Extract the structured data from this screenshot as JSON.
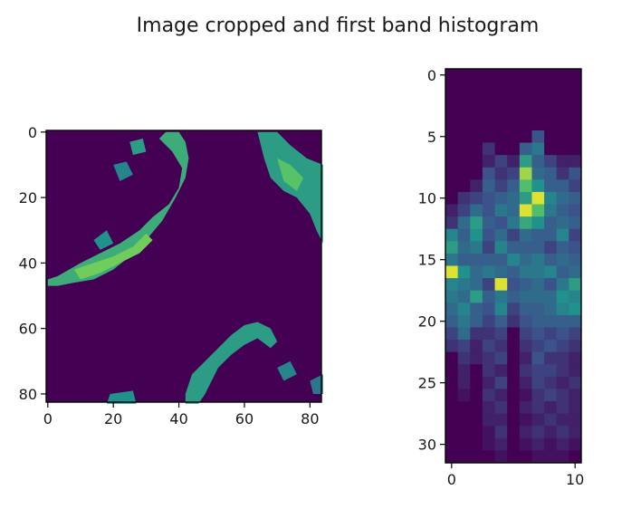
{
  "figure": {
    "title": "Image cropped and first band histogram"
  },
  "colors": {
    "background": "#ffffff",
    "axis": "#000000",
    "viridis_low": "#440154",
    "viridis_mid": "#21918c",
    "viridis_high": "#fde725"
  },
  "chart_data": [
    {
      "type": "heatmap",
      "title": "",
      "colormap": "viridis",
      "grid": false,
      "xlim": [
        -0.5,
        83.5
      ],
      "ylim": [
        82.5,
        -0.5
      ],
      "x_ticks": [
        0,
        20,
        40,
        60,
        80
      ],
      "y_ticks": [
        0,
        20,
        40,
        60,
        80
      ],
      "x_tick_labels": [
        "0",
        "20",
        "40",
        "60",
        "80"
      ],
      "y_tick_labels": [
        "0",
        "20",
        "40",
        "60",
        "80"
      ],
      "value_range": [
        0,
        1
      ],
      "regions": [
        {
          "name": "left-band",
          "value": 0.62,
          "pts": [
            [
              0,
              45
            ],
            [
              3,
              44
            ],
            [
              10,
              40
            ],
            [
              16,
              37
            ],
            [
              22,
              34
            ],
            [
              28,
              30
            ],
            [
              32,
              26
            ],
            [
              37,
              22
            ],
            [
              40,
              17
            ],
            [
              41,
              11
            ],
            [
              38,
              6
            ],
            [
              34,
              2
            ],
            [
              36,
              0
            ],
            [
              40,
              0
            ],
            [
              42,
              3
            ],
            [
              43,
              8
            ],
            [
              42,
              14
            ],
            [
              39,
              20
            ],
            [
              35,
              27
            ],
            [
              30,
              33
            ],
            [
              25,
              38
            ],
            [
              20,
              42
            ],
            [
              14,
              45
            ],
            [
              8,
              46
            ],
            [
              3,
              47
            ],
            [
              0,
              47
            ]
          ]
        },
        {
          "name": "left-band-bright",
          "value": 0.78,
          "pts": [
            [
              8,
              42
            ],
            [
              14,
              40
            ],
            [
              20,
              38
            ],
            [
              26,
              35
            ],
            [
              30,
              31
            ],
            [
              32,
              33
            ],
            [
              28,
              37
            ],
            [
              22,
              40
            ],
            [
              16,
              43
            ],
            [
              10,
              45
            ]
          ]
        },
        {
          "name": "left-speckle-1",
          "value": 0.45,
          "pts": [
            [
              20,
              10
            ],
            [
              24,
              9
            ],
            [
              26,
              13
            ],
            [
              22,
              15
            ]
          ]
        },
        {
          "name": "left-speckle-2",
          "value": 0.55,
          "pts": [
            [
              25,
              3
            ],
            [
              29,
              2
            ],
            [
              30,
              6
            ],
            [
              26,
              7
            ]
          ]
        },
        {
          "name": "left-top-pale",
          "value": 0.5,
          "pts": [
            [
              14,
              33
            ],
            [
              18,
              30
            ],
            [
              20,
              34
            ],
            [
              16,
              36
            ]
          ]
        },
        {
          "name": "top-right",
          "value": 0.55,
          "pts": [
            [
              64,
              0
            ],
            [
              70,
              0
            ],
            [
              74,
              4
            ],
            [
              79,
              8
            ],
            [
              84,
              10
            ],
            [
              84,
              34
            ],
            [
              82,
              30
            ],
            [
              80,
              25
            ],
            [
              76,
              20
            ],
            [
              72,
              18
            ],
            [
              68,
              14
            ],
            [
              66,
              8
            ]
          ]
        },
        {
          "name": "top-right-bright",
          "value": 0.72,
          "pts": [
            [
              70,
              8
            ],
            [
              74,
              10
            ],
            [
              78,
              14
            ],
            [
              76,
              18
            ],
            [
              72,
              15
            ]
          ]
        },
        {
          "name": "bottom-mid",
          "value": 0.55,
          "pts": [
            [
              42,
              80
            ],
            [
              44,
              74
            ],
            [
              48,
              70
            ],
            [
              52,
              66
            ],
            [
              56,
              62
            ],
            [
              60,
              59
            ],
            [
              64,
              58
            ],
            [
              68,
              60
            ],
            [
              70,
              64
            ],
            [
              68,
              66
            ],
            [
              64,
              63
            ],
            [
              60,
              65
            ],
            [
              56,
              68
            ],
            [
              52,
              72
            ],
            [
              50,
              76
            ],
            [
              48,
              80
            ],
            [
              46,
              83
            ],
            [
              42,
              83
            ]
          ]
        },
        {
          "name": "bottom-right-dots",
          "value": 0.45,
          "pts": [
            [
              70,
              72
            ],
            [
              74,
              70
            ],
            [
              76,
              74
            ],
            [
              72,
              76
            ]
          ]
        },
        {
          "name": "bottom-left",
          "value": 0.5,
          "pts": [
            [
              19,
              80
            ],
            [
              26,
              79
            ],
            [
              27,
              83
            ],
            [
              18,
              83
            ]
          ]
        },
        {
          "name": "right-bottom-speck",
          "value": 0.4,
          "pts": [
            [
              80,
              76
            ],
            [
              84,
              74
            ],
            [
              84,
              80
            ],
            [
              81,
              80
            ]
          ]
        }
      ]
    },
    {
      "type": "heatmap",
      "title": "",
      "colormap": "viridis",
      "grid": false,
      "xlim": [
        -0.5,
        10.5
      ],
      "ylim": [
        31.5,
        -0.5
      ],
      "x_ticks": [
        0,
        10
      ],
      "y_ticks": [
        0,
        5,
        10,
        15,
        20,
        25,
        30
      ],
      "x_tick_labels": [
        "0",
        "10"
      ],
      "y_tick_labels": [
        "0",
        "5",
        "10",
        "15",
        "20",
        "25",
        "30"
      ],
      "value_range": [
        0,
        1
      ],
      "cells": [
        [
          0,
          0,
          0,
          0,
          0,
          0,
          0,
          0,
          0,
          0,
          0
        ],
        [
          0,
          0,
          0,
          0,
          0,
          0,
          0,
          0,
          0,
          0,
          0
        ],
        [
          0,
          0,
          0,
          0,
          0,
          0,
          0,
          0,
          0,
          0,
          0
        ],
        [
          0,
          0,
          0,
          0,
          0,
          0,
          0,
          0,
          0,
          0,
          0
        ],
        [
          0,
          0,
          0,
          0,
          0,
          0,
          0,
          0,
          0,
          0,
          0
        ],
        [
          0,
          0,
          0,
          0,
          0,
          0,
          0,
          0.25,
          0,
          0,
          0
        ],
        [
          0,
          0,
          0,
          0.15,
          0,
          0,
          0.3,
          0.4,
          0,
          0,
          0
        ],
        [
          0,
          0,
          0,
          0.1,
          0.2,
          0.1,
          0.55,
          0.3,
          0.2,
          0.1,
          0.1
        ],
        [
          0,
          0,
          0,
          0.25,
          0.15,
          0.2,
          0.85,
          0.35,
          0.3,
          0.15,
          0.25
        ],
        [
          0,
          0,
          0.1,
          0.3,
          0.2,
          0.3,
          0.7,
          0.5,
          0.3,
          0.3,
          0.2
        ],
        [
          0,
          0.15,
          0.2,
          0.25,
          0.3,
          0.35,
          0.55,
          0.95,
          0.45,
          0.35,
          0.3
        ],
        [
          0.1,
          0.2,
          0.35,
          0.25,
          0.4,
          0.35,
          0.95,
          0.7,
          0.4,
          0.3,
          0.25
        ],
        [
          0.15,
          0.35,
          0.55,
          0.3,
          0.25,
          0.4,
          0.6,
          0.5,
          0.3,
          0.35,
          0.3
        ],
        [
          0.45,
          0.3,
          0.5,
          0.25,
          0.35,
          0.2,
          0.35,
          0.3,
          0.3,
          0.45,
          0.2
        ],
        [
          0.55,
          0.35,
          0.4,
          0.2,
          0.45,
          0.3,
          0.3,
          0.3,
          0.2,
          0.3,
          0.25
        ],
        [
          0.4,
          0.3,
          0.3,
          0.3,
          0.3,
          0.45,
          0.35,
          0.4,
          0.3,
          0.35,
          0.3
        ],
        [
          0.95,
          0.5,
          0.35,
          0.4,
          0.35,
          0.3,
          0.4,
          0.4,
          0.45,
          0.3,
          0.35
        ],
        [
          0.45,
          0.4,
          0.35,
          0.2,
          0.95,
          0.25,
          0.3,
          0.35,
          0.25,
          0.4,
          0.55
        ],
        [
          0.4,
          0.35,
          0.55,
          0.3,
          0.4,
          0.3,
          0.35,
          0.35,
          0.35,
          0.5,
          0.45
        ],
        [
          0.35,
          0.45,
          0.3,
          0.25,
          0.45,
          0.2,
          0.3,
          0.3,
          0.35,
          0.45,
          0.5
        ],
        [
          0.3,
          0.4,
          0.3,
          0.2,
          0.3,
          0.15,
          0.25,
          0.3,
          0.3,
          0.3,
          0.3
        ],
        [
          0.2,
          0.35,
          0.15,
          0.15,
          0.2,
          0,
          0.2,
          0.25,
          0.2,
          0.25,
          0.2
        ],
        [
          0.15,
          0.2,
          0.1,
          0.2,
          0.15,
          0,
          0.15,
          0.2,
          0.25,
          0.2,
          0.15
        ],
        [
          0,
          0.15,
          0.1,
          0.15,
          0.2,
          0,
          0.1,
          0.25,
          0.15,
          0.15,
          0.1
        ],
        [
          0,
          0.1,
          0,
          0.15,
          0.1,
          0,
          0.15,
          0.2,
          0.2,
          0.15,
          0.1
        ],
        [
          0,
          0.1,
          0,
          0.1,
          0.2,
          0,
          0.1,
          0.2,
          0.15,
          0.1,
          0.15
        ],
        [
          0,
          0.05,
          0,
          0.15,
          0.1,
          0,
          0.05,
          0.15,
          0.2,
          0.15,
          0.1
        ],
        [
          0,
          0,
          0,
          0.1,
          0.15,
          0,
          0.1,
          0.15,
          0.1,
          0.15,
          0.1
        ],
        [
          0,
          0,
          0,
          0.1,
          0.1,
          0,
          0.05,
          0.1,
          0.15,
          0.1,
          0.1
        ],
        [
          0,
          0,
          0,
          0.05,
          0.15,
          0,
          0.1,
          0.15,
          0.1,
          0.15,
          0.1
        ],
        [
          0,
          0,
          0,
          0.05,
          0.1,
          0,
          0.05,
          0.1,
          0.05,
          0.1,
          0.05
        ],
        [
          0,
          0,
          0,
          0,
          0.05,
          0,
          0,
          0.05,
          0.05,
          0.05,
          0
        ]
      ]
    }
  ]
}
